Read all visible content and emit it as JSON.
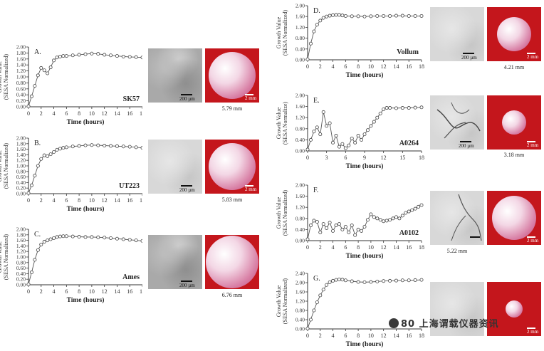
{
  "common": {
    "ylabel_line1": "Growth Value",
    "ylabel_line2": "(SESA Normalized)",
    "ylabel_line2_alt": "(SESA Normalize)",
    "xlabel": "Time (hours)"
  },
  "chart_data": [
    {
      "id": "A",
      "type": "line",
      "letter": "A.",
      "strain": "SK57",
      "xlabel": "Time (hours)",
      "ylabel": "Growth Value (SESA Normalized)",
      "xlim": [
        0,
        18
      ],
      "ylim": [
        0,
        2.0
      ],
      "xticks": [
        "0",
        "2",
        "4",
        "6",
        "8",
        "10",
        "12",
        "14",
        "16",
        "18"
      ],
      "yticks": [
        "0.00",
        "0.20",
        "0.40",
        "0.60",
        "0.80",
        "1.00",
        "1.20",
        "1.40",
        "1.60",
        "1.80",
        "2.00"
      ],
      "x": [
        0,
        0.5,
        1,
        1.5,
        2,
        2.5,
        3,
        3.5,
        4,
        4.5,
        5,
        5.5,
        6,
        7,
        8,
        9,
        10,
        11,
        12,
        13,
        14,
        15,
        16,
        17,
        18
      ],
      "y": [
        0.02,
        0.35,
        0.7,
        1.05,
        1.3,
        1.22,
        1.12,
        1.32,
        1.55,
        1.65,
        1.68,
        1.7,
        1.7,
        1.72,
        1.74,
        1.76,
        1.78,
        1.77,
        1.74,
        1.72,
        1.7,
        1.68,
        1.67,
        1.66,
        1.65
      ],
      "micro_scale": "200 µm",
      "colony_scale": "2 mm",
      "diameter": "5.79 mm"
    },
    {
      "id": "B",
      "type": "line",
      "letter": "B.",
      "strain": "UT223",
      "xlabel": "Time (hours)",
      "ylabel": "Growth Value (SESA Normalized)",
      "xlim": [
        0,
        18
      ],
      "ylim": [
        0,
        2.0
      ],
      "xticks": [
        "0",
        "2",
        "4",
        "6",
        "8",
        "10",
        "12",
        "14",
        "16",
        "18"
      ],
      "yticks": [
        "0.00",
        "0.20",
        "0.40",
        "0.60",
        "0.80",
        "1.00",
        "1.20",
        "1.40",
        "1.60",
        "1.80",
        "2.00"
      ],
      "x": [
        0,
        0.5,
        1,
        1.5,
        2,
        2.5,
        3,
        3.5,
        4,
        4.5,
        5,
        5.5,
        6,
        7,
        8,
        9,
        10,
        11,
        12,
        13,
        14,
        15,
        16,
        17,
        18
      ],
      "y": [
        0.02,
        0.3,
        0.65,
        1.0,
        1.25,
        1.38,
        1.35,
        1.42,
        1.5,
        1.58,
        1.62,
        1.65,
        1.67,
        1.7,
        1.72,
        1.74,
        1.75,
        1.74,
        1.73,
        1.72,
        1.71,
        1.7,
        1.69,
        1.67,
        1.65
      ],
      "micro_scale": "200 µm",
      "colony_scale": "2 mm",
      "diameter": "5.83 mm"
    },
    {
      "id": "C",
      "type": "line",
      "letter": "C.",
      "strain": "Ames",
      "xlabel": "Time (hours)",
      "ylabel": "Growth Value (SESA Normalized)",
      "xlim": [
        0,
        18
      ],
      "ylim": [
        0,
        2.0
      ],
      "xticks": [
        "0",
        "2",
        "4",
        "6",
        "8",
        "10",
        "12",
        "14",
        "16",
        "18"
      ],
      "yticks": [
        "0.00",
        "0.20",
        "0.40",
        "0.60",
        "0.80",
        "1.00",
        "1.20",
        "1.40",
        "1.60",
        "1.80",
        "2.00"
      ],
      "x": [
        0,
        0.5,
        1,
        1.5,
        2,
        2.5,
        3,
        3.5,
        4,
        4.5,
        5,
        5.5,
        6,
        7,
        8,
        9,
        10,
        11,
        12,
        13,
        14,
        15,
        16,
        17,
        18
      ],
      "y": [
        0.02,
        0.45,
        0.9,
        1.25,
        1.45,
        1.55,
        1.6,
        1.64,
        1.68,
        1.72,
        1.74,
        1.75,
        1.75,
        1.74,
        1.73,
        1.72,
        1.72,
        1.71,
        1.7,
        1.68,
        1.66,
        1.64,
        1.62,
        1.6,
        1.58
      ],
      "micro_scale": "200 µm",
      "colony_scale": "",
      "diameter": "6.76 mm"
    },
    {
      "id": "D",
      "type": "line",
      "letter": "D.",
      "strain": "Vollum",
      "xlabel": "Time (hours)",
      "ylabel": "Growth Value (SESA Normalized)",
      "xlim": [
        0,
        18
      ],
      "ylim": [
        0,
        2.0
      ],
      "xticks": [
        "0",
        "2",
        "4",
        "6",
        "8",
        "10",
        "12",
        "14",
        "16",
        "18"
      ],
      "yticks": [
        "0.00",
        "0.40",
        "0.80",
        "1.20",
        "1.60",
        "2.00"
      ],
      "x": [
        0,
        0.5,
        1,
        1.5,
        2,
        2.5,
        3,
        3.5,
        4,
        4.5,
        5,
        5.5,
        6,
        7,
        8,
        9,
        10,
        11,
        12,
        13,
        14,
        15,
        16,
        17,
        18
      ],
      "y": [
        0.02,
        0.6,
        1.05,
        1.3,
        1.45,
        1.55,
        1.6,
        1.63,
        1.65,
        1.66,
        1.66,
        1.64,
        1.62,
        1.61,
        1.61,
        1.6,
        1.61,
        1.62,
        1.62,
        1.62,
        1.63,
        1.63,
        1.62,
        1.62,
        1.62
      ],
      "micro_scale": "200 µm",
      "colony_scale": "2 mm",
      "diameter": "4.21 mm"
    },
    {
      "id": "E",
      "type": "line",
      "letter": "E.",
      "strain": "A0264",
      "xlabel": "Time (hours)",
      "ylabel": "Growth Value (SESA Normalize)",
      "xlim": [
        0,
        18
      ],
      "ylim": [
        0,
        2.0
      ],
      "xticks": [
        "0",
        "3",
        "6",
        "9",
        "12",
        "15",
        "18"
      ],
      "yticks": [
        "0.00",
        "0.40",
        "0.80",
        "1.20",
        "1.60",
        "2.00"
      ],
      "x": [
        0,
        0.5,
        1,
        1.5,
        2,
        2.5,
        3,
        3.5,
        4,
        4.5,
        5,
        5.5,
        6,
        6.5,
        7,
        7.5,
        8,
        8.5,
        9,
        9.5,
        10,
        10.5,
        11,
        11.5,
        12,
        12.5,
        13,
        14,
        15,
        16,
        17,
        18
      ],
      "y": [
        0.05,
        0.4,
        0.7,
        0.85,
        0.6,
        1.4,
        0.9,
        1.0,
        0.3,
        0.55,
        0.15,
        0.25,
        0.1,
        0.2,
        0.45,
        0.3,
        0.55,
        0.4,
        0.6,
        0.75,
        0.9,
        1.05,
        1.2,
        1.35,
        1.5,
        1.55,
        1.55,
        1.54,
        1.55,
        1.55,
        1.56,
        1.57
      ],
      "micro_scale": "200 µm",
      "colony_scale": "2 mm",
      "diameter": "3.18 mm"
    },
    {
      "id": "F",
      "type": "line",
      "letter": "F.",
      "strain": "A0102",
      "xlabel": "Time (hours)",
      "ylabel": "Growth Value (SESA Normalized)",
      "xlim": [
        0,
        18
      ],
      "ylim": [
        0,
        2.0
      ],
      "xticks": [
        "0",
        "2",
        "4",
        "6",
        "8",
        "10",
        "12",
        "14",
        "16",
        "18"
      ],
      "yticks": [
        "0.00",
        "0.40",
        "0.80",
        "1.20",
        "1.60",
        "2.00"
      ],
      "x": [
        0,
        0.5,
        1,
        1.5,
        2,
        2.5,
        3,
        3.5,
        4,
        4.5,
        5,
        5.5,
        6,
        6.5,
        7,
        7.5,
        8,
        8.5,
        9,
        9.5,
        10,
        10.5,
        11,
        11.5,
        12,
        12.5,
        13,
        13.5,
        14,
        14.5,
        15,
        15.5,
        16,
        16.5,
        17,
        17.5,
        18
      ],
      "y": [
        0.05,
        0.55,
        0.72,
        0.68,
        0.3,
        0.6,
        0.45,
        0.65,
        0.35,
        0.55,
        0.6,
        0.4,
        0.5,
        0.3,
        0.55,
        0.2,
        0.4,
        0.35,
        0.5,
        0.75,
        0.95,
        0.85,
        0.8,
        0.75,
        0.7,
        0.72,
        0.75,
        0.8,
        0.85,
        0.8,
        0.9,
        1.0,
        1.05,
        1.1,
        1.15,
        1.22,
        1.28
      ],
      "micro_scale": "200 µm",
      "colony_scale": "2 mm",
      "diameter": "5.22 mm"
    },
    {
      "id": "G",
      "type": "line",
      "letter": "G.",
      "strain": "",
      "xlabel": "Time (hours)",
      "ylabel": "Growth Value (SESA Normalized)",
      "xlim": [
        0,
        18
      ],
      "ylim": [
        0,
        2.4
      ],
      "xticks": [
        "0",
        "2",
        "4",
        "6",
        "8",
        "10",
        "12",
        "14",
        "16",
        "18"
      ],
      "yticks": [
        "0.00",
        "0.40",
        "0.80",
        "1.20",
        "1.60",
        "2.00",
        "2.40"
      ],
      "x": [
        0,
        0.5,
        1,
        1.5,
        2,
        2.5,
        3,
        3.5,
        4,
        4.5,
        5,
        5.5,
        6,
        7,
        8,
        9,
        10,
        11,
        12,
        13,
        14,
        15,
        16,
        17,
        18
      ],
      "y": [
        0.02,
        0.4,
        0.8,
        1.15,
        1.45,
        1.7,
        1.9,
        2.02,
        2.08,
        2.12,
        2.14,
        2.13,
        2.1,
        2.06,
        2.03,
        2.02,
        2.03,
        2.05,
        2.07,
        2.08,
        2.09,
        2.1,
        2.1,
        2.11,
        2.12
      ],
      "micro_scale": "",
      "colony_scale": "2 mm",
      "diameter": ""
    }
  ],
  "watermark": {
    "text": "上海谓载仪器资讯",
    "fragment": "80"
  }
}
